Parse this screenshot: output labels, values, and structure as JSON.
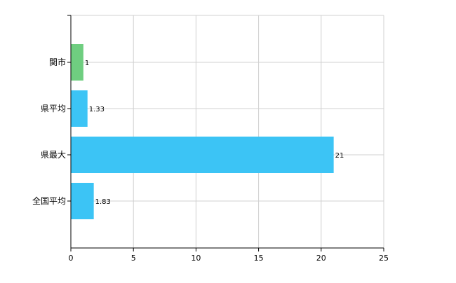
{
  "chart_data": {
    "type": "bar",
    "orientation": "horizontal",
    "title": "",
    "xlabel": "",
    "ylabel": "",
    "categories": [
      "関市",
      "県平均",
      "県最大",
      "全国平均"
    ],
    "values": [
      1,
      1.33,
      21,
      1.83
    ],
    "data_labels": [
      "1",
      "1.33",
      "21",
      "1.83"
    ],
    "colors": [
      "#6fce80",
      "#3cc4f5",
      "#3cc4f5",
      "#3cc4f5"
    ],
    "xlim": [
      0,
      25
    ],
    "x_ticks": [
      0,
      5,
      10,
      15,
      20,
      25
    ],
    "x_tick_labels": [
      "0",
      "5",
      "10",
      "15",
      "20",
      "25"
    ],
    "grid": true,
    "legend": "none"
  }
}
